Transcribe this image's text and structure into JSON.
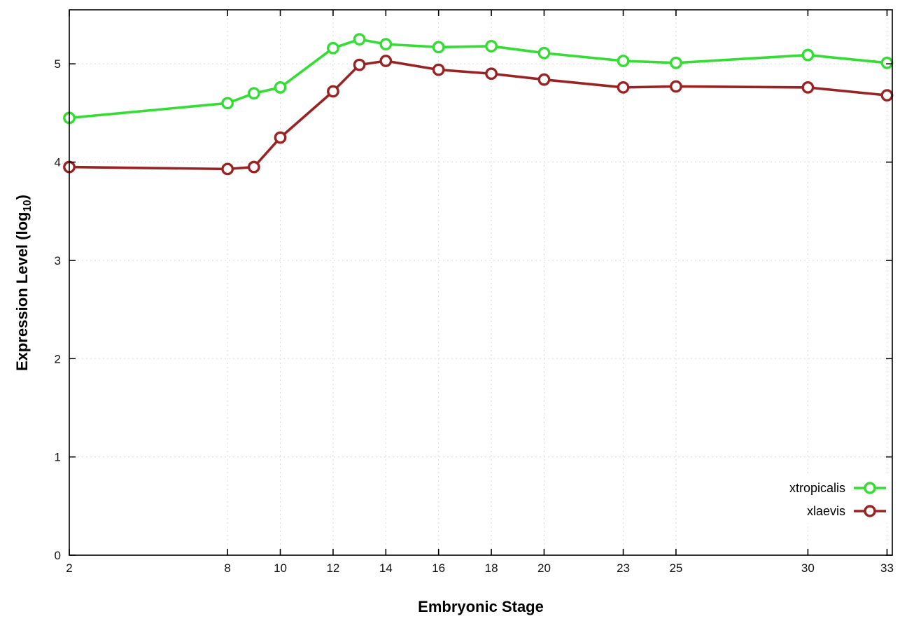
{
  "chart_data": {
    "type": "line",
    "title": "",
    "xlabel": "Embryonic Stage",
    "ylabel": "Expression Level (log10)",
    "ylabel_rich": {
      "prefix": "Expression Level (log",
      "sub": "10",
      "suffix": ")"
    },
    "x": [
      2,
      8,
      9,
      10,
      12,
      13,
      14,
      16,
      18,
      20,
      23,
      25,
      30,
      33
    ],
    "x_tick_values": [
      2,
      8,
      10,
      12,
      14,
      16,
      18,
      20,
      23,
      25,
      30,
      33
    ],
    "x_tick_labels": [
      "2",
      "8",
      "10",
      "12",
      "14",
      "16",
      "18",
      "20",
      "23",
      "25",
      "30",
      "33"
    ],
    "y_tick_values": [
      0,
      1,
      2,
      3,
      4,
      5
    ],
    "y_tick_labels": [
      "0",
      "1",
      "2",
      "3",
      "4",
      "5"
    ],
    "xlim": [
      2,
      33.2
    ],
    "ylim": [
      0,
      5.55
    ],
    "grid": true,
    "marker": "open-circle",
    "legend_position": "bottom-right",
    "series": [
      {
        "name": "xtropicalis",
        "color": "#33dd33",
        "values": [
          4.45,
          4.6,
          4.7,
          4.76,
          5.16,
          5.25,
          5.2,
          5.17,
          5.18,
          5.11,
          5.03,
          5.01,
          5.09,
          5.01
        ]
      },
      {
        "name": "xlaevis",
        "color": "#992222",
        "values": [
          3.95,
          3.93,
          3.95,
          4.25,
          4.72,
          4.99,
          5.03,
          4.94,
          4.9,
          4.84,
          4.76,
          4.77,
          4.76,
          4.68
        ]
      }
    ]
  }
}
